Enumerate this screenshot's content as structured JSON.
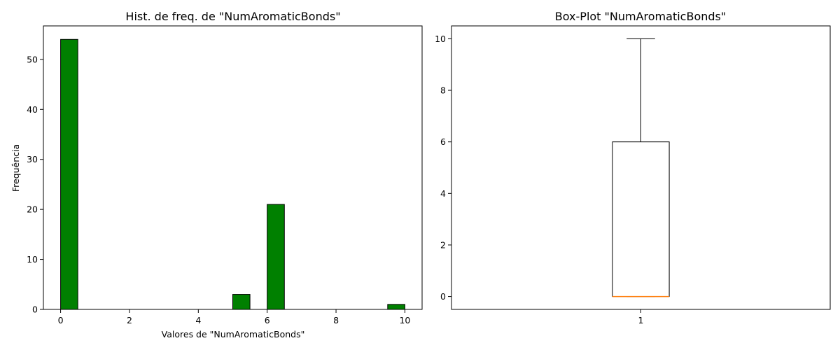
{
  "chart_data": [
    {
      "type": "bar",
      "title": "Hist. de freq. de \"NumAromaticBonds\"",
      "xlabel": "Valores de \"NumAromaticBonds\"",
      "ylabel": "Frequência",
      "bin_width": 0.5,
      "bins": [
        {
          "start": 0,
          "end": 0.5,
          "count": 54
        },
        {
          "start": 0.5,
          "end": 1,
          "count": 0
        },
        {
          "start": 1,
          "end": 1.5,
          "count": 0
        },
        {
          "start": 1.5,
          "end": 2,
          "count": 0
        },
        {
          "start": 2,
          "end": 2.5,
          "count": 0
        },
        {
          "start": 2.5,
          "end": 3,
          "count": 0
        },
        {
          "start": 3,
          "end": 3.5,
          "count": 0
        },
        {
          "start": 3.5,
          "end": 4,
          "count": 0
        },
        {
          "start": 4,
          "end": 4.5,
          "count": 0
        },
        {
          "start": 4.5,
          "end": 5,
          "count": 0
        },
        {
          "start": 5,
          "end": 5.5,
          "count": 3
        },
        {
          "start": 5.5,
          "end": 6,
          "count": 0
        },
        {
          "start": 6,
          "end": 6.5,
          "count": 21
        },
        {
          "start": 6.5,
          "end": 7,
          "count": 0
        },
        {
          "start": 7,
          "end": 7.5,
          "count": 0
        },
        {
          "start": 7.5,
          "end": 8,
          "count": 0
        },
        {
          "start": 8,
          "end": 8.5,
          "count": 0
        },
        {
          "start": 8.5,
          "end": 9,
          "count": 0
        },
        {
          "start": 9,
          "end": 9.5,
          "count": 0
        },
        {
          "start": 9.5,
          "end": 10,
          "count": 1
        }
      ],
      "xlim": [
        -0.5,
        10.5
      ],
      "ylim": [
        0,
        56.7
      ],
      "xticks": [
        0,
        2,
        4,
        6,
        8,
        10
      ],
      "yticks": [
        0,
        10,
        20,
        30,
        40,
        50
      ],
      "bar_color": "#008000",
      "edge_color": "#000000",
      "grid": false
    },
    {
      "type": "box",
      "title": "Box-Plot \"NumAromaticBonds\"",
      "categories": [
        "1"
      ],
      "stats": {
        "min": 0,
        "q1": 0,
        "median": 0,
        "q3": 6,
        "max": 10
      },
      "ylim": [
        -0.5,
        10.5
      ],
      "yticks": [
        0,
        2,
        4,
        6,
        8,
        10
      ],
      "median_color": "#ff7f0e",
      "grid": false
    }
  ]
}
